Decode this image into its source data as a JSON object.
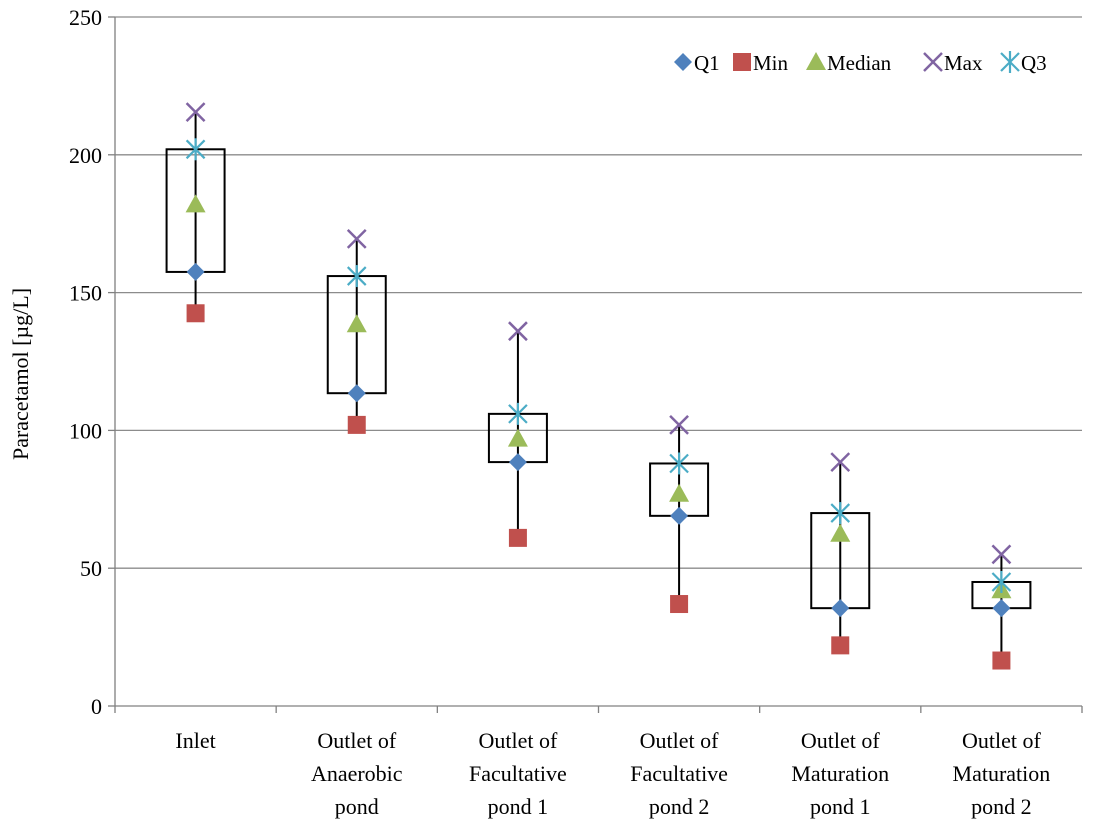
{
  "chart_data": {
    "type": "boxplot",
    "title": "",
    "xlabel": "",
    "ylabel": "Paracetamol [µg/L]",
    "ylim": [
      0,
      250
    ],
    "yticks": [
      0,
      50,
      100,
      150,
      200,
      250
    ],
    "grid": true,
    "legend_position": "top-right",
    "categories": [
      [
        "Inlet"
      ],
      [
        "Outlet of",
        "Anaerobic",
        "pond"
      ],
      [
        "Outlet of",
        "Facultative",
        "pond 1"
      ],
      [
        "Outlet of",
        "Facultative",
        "pond 2"
      ],
      [
        "Outlet of",
        "Maturation",
        "pond 1"
      ],
      [
        "Outlet of",
        "Maturation",
        "pond 2"
      ]
    ],
    "series": [
      {
        "name": "Q1",
        "marker": "diamond",
        "color": "#4f81bd",
        "values": [
          157.5,
          113.5,
          88.5,
          69,
          35.5,
          35.5
        ]
      },
      {
        "name": "Min",
        "marker": "square",
        "color": "#c0504d",
        "values": [
          142.5,
          102,
          61,
          37,
          22,
          16.5
        ]
      },
      {
        "name": "Median",
        "marker": "triangle",
        "color": "#9bbb59",
        "values": [
          182,
          138.5,
          97,
          77,
          62.5,
          42
        ]
      },
      {
        "name": "Max",
        "marker": "x",
        "color": "#8064a2",
        "values": [
          215.5,
          169.5,
          136,
          102,
          88.5,
          55
        ]
      },
      {
        "name": "Q3",
        "marker": "star",
        "color": "#4bacc6",
        "values": [
          202,
          156,
          106,
          88,
          70,
          45
        ]
      }
    ]
  }
}
